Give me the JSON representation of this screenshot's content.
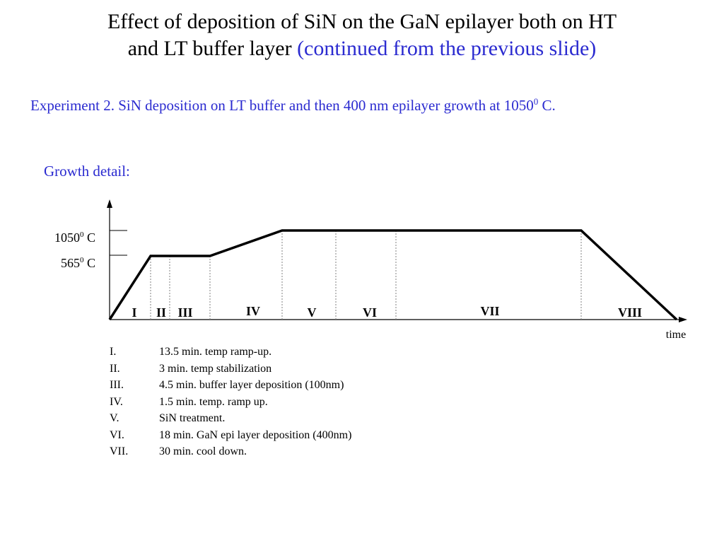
{
  "title": {
    "line1": "Effect of deposition of SiN on the GaN epilayer both on HT",
    "line2_black": "and LT buffer layer ",
    "line2_blue": "(continued from the previous slide)"
  },
  "experiment": {
    "text_before_sup": "Experiment 2.  SiN deposition on LT buffer and then 400 nm epilayer growth at 1050",
    "sup": "0",
    "text_after_sup": " C."
  },
  "growth_label": "Growth detail:",
  "y_labels": [
    {
      "value": "1050",
      "sup": "0",
      "unit": " C"
    },
    {
      "value": "565",
      "sup": "0",
      "unit": " C"
    }
  ],
  "x_label": "time",
  "segments": [
    "I",
    "II",
    "III",
    "IV",
    "V",
    "VI",
    "VII",
    "VIII"
  ],
  "legend": [
    {
      "num": "I.",
      "text": "13.5 min. temp ramp-up."
    },
    {
      "num": "II.",
      "text": "3  min. temp stabilization"
    },
    {
      "num": "III.",
      "text": "4.5 min. buffer layer deposition (100nm)"
    },
    {
      "num": "IV.",
      "text": "1.5 min. temp. ramp up."
    },
    {
      "num": "V.",
      "text": "SiN treatment."
    },
    {
      "num": "VI.",
      "text": "18 min. GaN epi layer deposition (400nm)"
    },
    {
      "num": "VII.",
      "text": "30 min. cool down."
    }
  ],
  "colors": {
    "accent": "#2b2bd0",
    "line": "#000000",
    "divider": "#808080"
  }
}
